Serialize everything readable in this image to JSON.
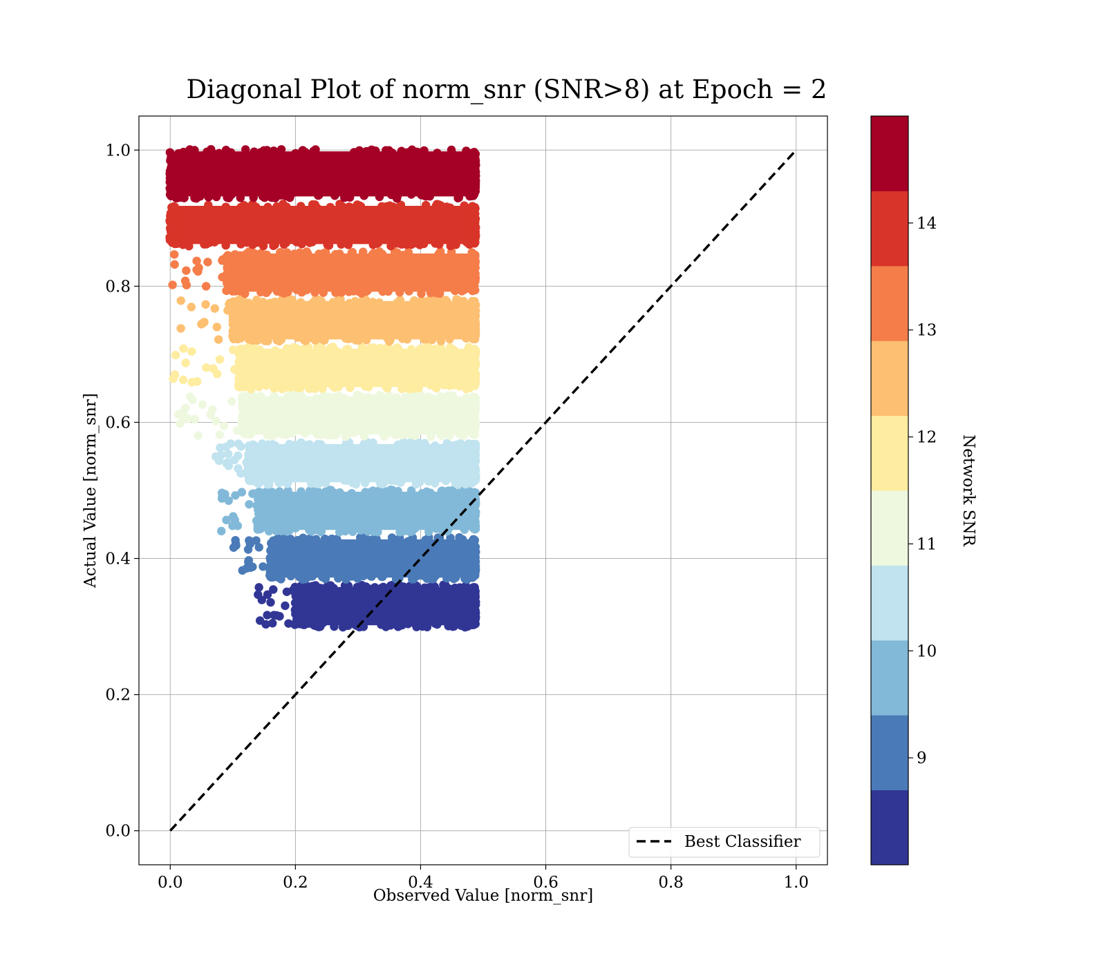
{
  "chart_data": {
    "type": "scatter",
    "title": "Diagonal Plot of norm_snr (SNR>8) at Epoch = 2",
    "xlabel": "Observed Value [norm_snr]",
    "ylabel": "Actual Value [norm_snr]",
    "xlim": [
      -0.05,
      1.05
    ],
    "ylim": [
      -0.05,
      1.05
    ],
    "grid": true,
    "x_ticks": [
      "0.0",
      "0.2",
      "0.4",
      "0.6",
      "0.8",
      "1.0"
    ],
    "y_ticks": [
      "0.0",
      "0.2",
      "0.4",
      "0.6",
      "0.8",
      "1.0"
    ],
    "x_tick_values": [
      0.0,
      0.2,
      0.4,
      0.6,
      0.8,
      1.0
    ],
    "y_tick_values": [
      0.0,
      0.2,
      0.4,
      0.6,
      0.8,
      1.0
    ],
    "reference_line": {
      "name": "Best Classifier",
      "x": [
        0.0,
        1.0
      ],
      "y": [
        0.0,
        1.0
      ],
      "style": "dashed",
      "color": "#000000"
    },
    "legend": {
      "placement": "lower-right",
      "entries": [
        "Best Classifier"
      ]
    },
    "colorbar": {
      "label": "Network SNR",
      "range": [
        8.0,
        15.0
      ],
      "ticks": [
        9,
        10,
        11,
        12,
        13,
        14
      ],
      "tick_labels": [
        "9",
        "10",
        "11",
        "12",
        "13",
        "14"
      ],
      "colors": [
        "#313695",
        "#4a7ab7",
        "#83b9d8",
        "#c0e3ef",
        "#eef8df",
        "#feeca0",
        "#fdbf71",
        "#f57d4a",
        "#d93429",
        "#a50026"
      ]
    },
    "bands": [
      {
        "snr": [
          8.0,
          8.7
        ],
        "y_range": [
          0.3,
          0.36
        ],
        "x_range": [
          0.2,
          0.485
        ],
        "color": "#313695"
      },
      {
        "snr": [
          8.7,
          9.4
        ],
        "y_range": [
          0.37,
          0.43
        ],
        "x_range": [
          0.16,
          0.485
        ],
        "color": "#4a7ab7"
      },
      {
        "snr": [
          9.4,
          10.1
        ],
        "y_range": [
          0.44,
          0.5
        ],
        "x_range": [
          0.14,
          0.485
        ],
        "color": "#83b9d8"
      },
      {
        "snr": [
          10.1,
          10.8
        ],
        "y_range": [
          0.51,
          0.57
        ],
        "x_range": [
          0.125,
          0.485
        ],
        "color": "#c0e3ef"
      },
      {
        "snr": [
          10.8,
          11.5
        ],
        "y_range": [
          0.58,
          0.64
        ],
        "x_range": [
          0.115,
          0.485
        ],
        "color": "#eef8df"
      },
      {
        "snr": [
          11.5,
          12.2
        ],
        "y_range": [
          0.65,
          0.71
        ],
        "x_range": [
          0.11,
          0.485
        ],
        "color": "#feeca0"
      },
      {
        "snr": [
          12.2,
          12.9
        ],
        "y_range": [
          0.72,
          0.78
        ],
        "x_range": [
          0.1,
          0.485
        ],
        "color": "#fdbf71"
      },
      {
        "snr": [
          12.9,
          13.6
        ],
        "y_range": [
          0.79,
          0.85
        ],
        "x_range": [
          0.09,
          0.485
        ],
        "color": "#f57d4a"
      },
      {
        "snr": [
          13.6,
          14.3
        ],
        "y_range": [
          0.86,
          0.92
        ],
        "x_range": [
          0.0,
          0.485
        ],
        "color": "#d93429"
      },
      {
        "snr": [
          14.3,
          15.0
        ],
        "y_range": [
          0.93,
          1.0
        ],
        "x_range": [
          0.0,
          0.485
        ],
        "color": "#a50026"
      }
    ]
  }
}
